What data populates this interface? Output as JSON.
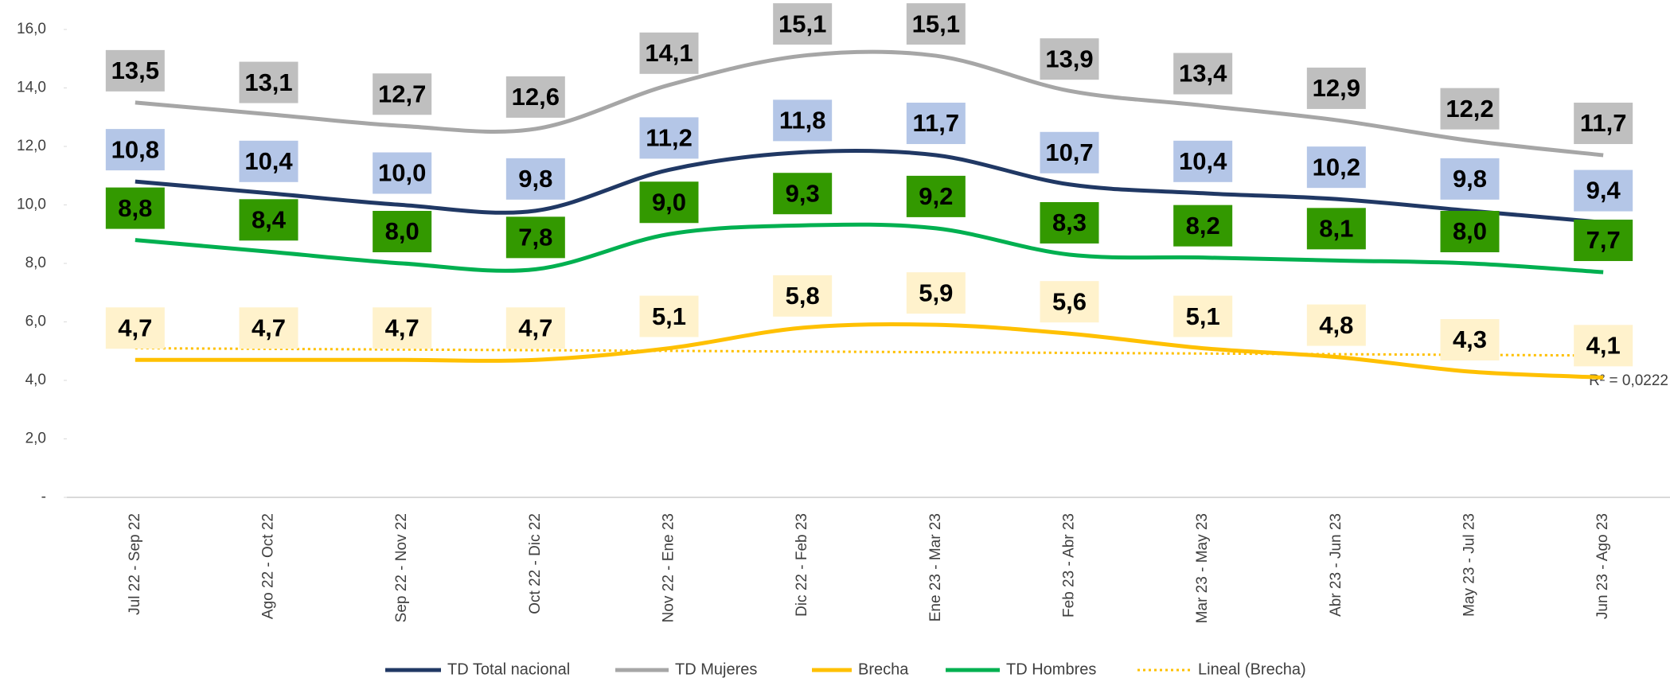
{
  "chart_data": {
    "type": "line",
    "categories": [
      "Jul 22 - Sep 22",
      "Ago 22 - Oct 22",
      "Sep 22 - Nov 22",
      "Oct 22 - Dic 22",
      "Nov 22 -  Ene 23",
      "Dic 22 - Feb 23",
      "Ene 23 - Mar 23",
      "Feb 23 - Abr 23",
      "Mar 23 - May 23",
      "Abr 23 - Jun 23",
      "May 23 - Jul 23",
      "Jun 23 - Ago 23"
    ],
    "series": [
      {
        "name": "TD Total nacional",
        "color": "#203864",
        "label_color": "#b4c6e7",
        "values": [
          10.8,
          10.4,
          10.0,
          9.8,
          11.2,
          11.8,
          11.7,
          10.7,
          10.4,
          10.2,
          9.8,
          9.4
        ],
        "value_labels": [
          "10,8",
          "10,4",
          "10,0",
          "9,8",
          "11,2",
          "11,8",
          "11,7",
          "10,7",
          "10,4",
          "10,2",
          "9,8",
          "9,4"
        ]
      },
      {
        "name": "TD Mujeres",
        "color": "#a6a6a6",
        "label_color": "#bfbfbf",
        "values": [
          13.5,
          13.1,
          12.7,
          12.6,
          14.1,
          15.1,
          15.1,
          13.9,
          13.4,
          12.9,
          12.2,
          11.7
        ],
        "value_labels": [
          "13,5",
          "13,1",
          "12,7",
          "12,6",
          "14,1",
          "15,1",
          "15,1",
          "13,9",
          "13,4",
          "12,9",
          "12,2",
          "11,7"
        ]
      },
      {
        "name": "Brecha",
        "color": "#ffc000",
        "label_color": "#fff2cc",
        "values": [
          4.7,
          4.7,
          4.7,
          4.7,
          5.1,
          5.8,
          5.9,
          5.6,
          5.1,
          4.8,
          4.3,
          4.1
        ],
        "value_labels": [
          "4,7",
          "4,7",
          "4,7",
          "4,7",
          "5,1",
          "5,8",
          "5,9",
          "5,6",
          "5,1",
          "4,8",
          "4,3",
          "4,1"
        ]
      },
      {
        "name": "TD Hombres",
        "color": "#00b050",
        "label_color": "#339900",
        "values": [
          8.8,
          8.4,
          8.0,
          7.8,
          9.0,
          9.3,
          9.2,
          8.3,
          8.2,
          8.1,
          8.0,
          7.7
        ],
        "value_labels": [
          "8,8",
          "8,4",
          "8,0",
          "7,8",
          "9,0",
          "9,3",
          "9,2",
          "8,3",
          "8,2",
          "8,1",
          "8,0",
          "7,7"
        ]
      }
    ],
    "trendline": {
      "name": "Lineal (Brecha)",
      "color": "#ffc000",
      "values": [
        5.1,
        4.85
      ],
      "r2_label": "R² = 0,0222"
    },
    "ylim": [
      0,
      16
    ],
    "yticks": [
      {
        "value": 0,
        "label": "-"
      },
      {
        "value": 2,
        "label": "2,0"
      },
      {
        "value": 4,
        "label": "4,0"
      },
      {
        "value": 6,
        "label": "6,0"
      },
      {
        "value": 8,
        "label": "8,0"
      },
      {
        "value": 10,
        "label": "10,0"
      },
      {
        "value": 12,
        "label": "12,0"
      },
      {
        "value": 14,
        "label": "14,0"
      },
      {
        "value": 16,
        "label": "16,0"
      }
    ],
    "legend": "bottom"
  }
}
